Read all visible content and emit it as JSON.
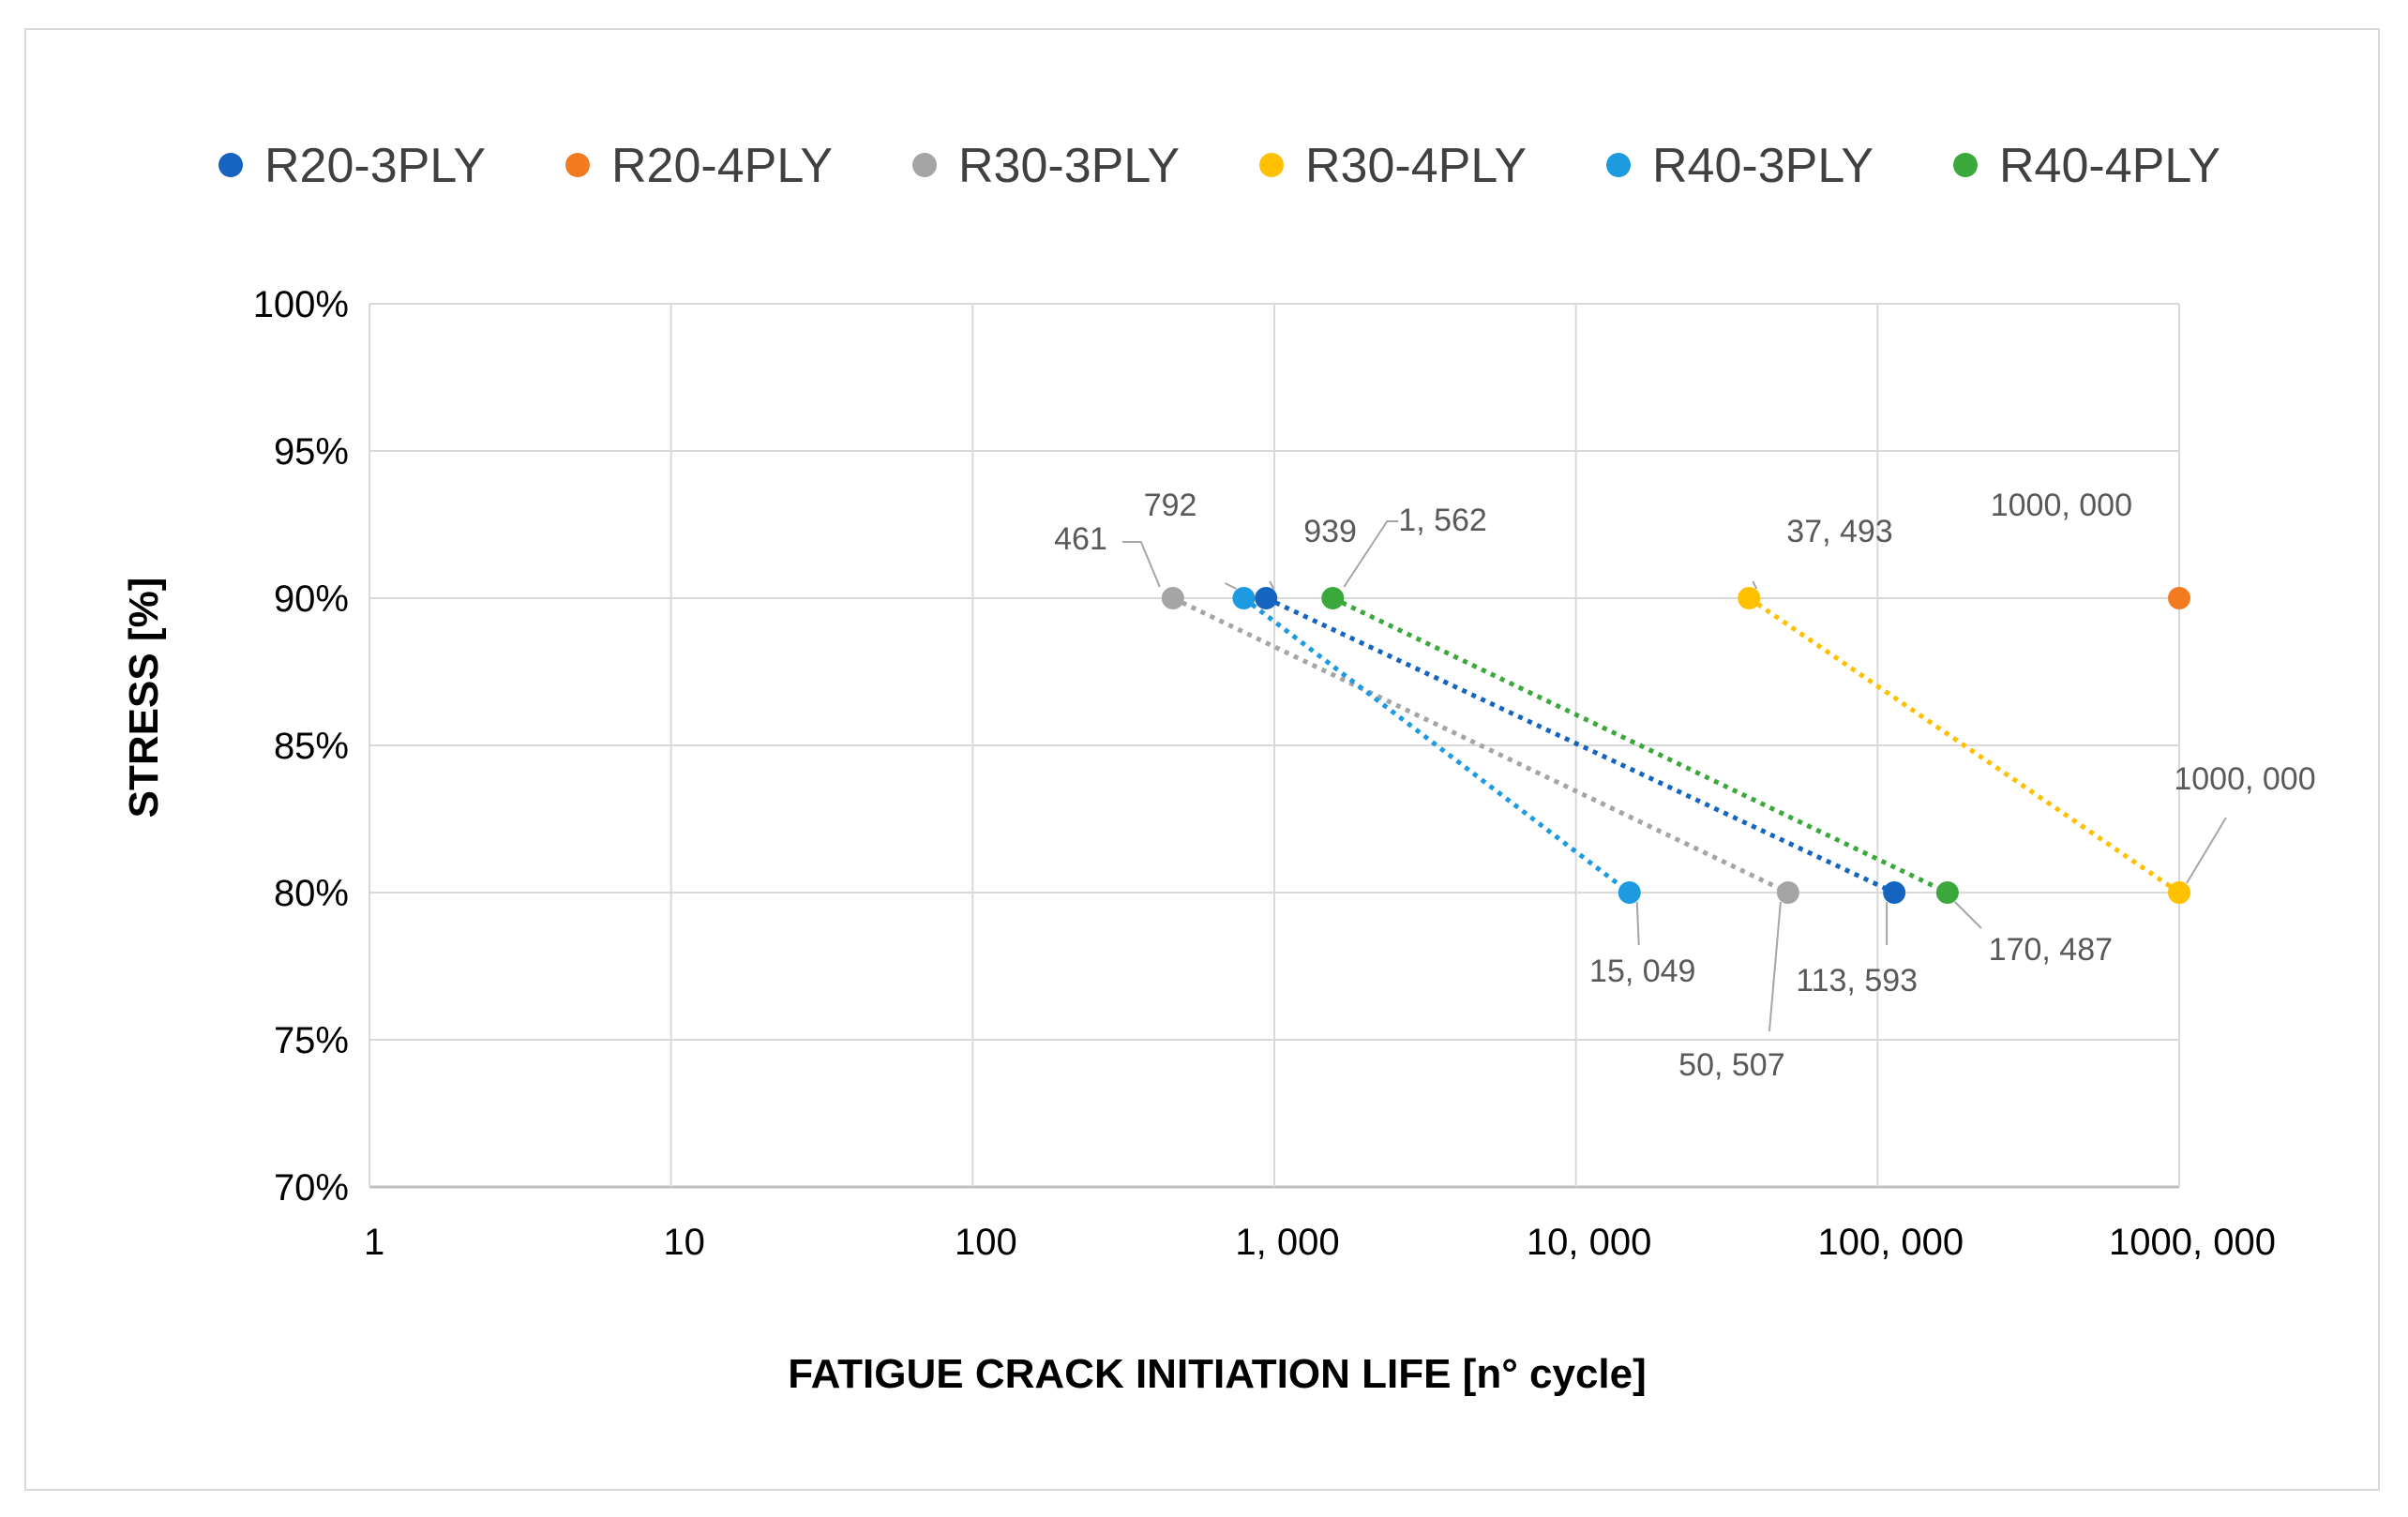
{
  "chart_data": {
    "type": "scatter",
    "title": "",
    "xlabel": "FATIGUE CRACK INITIATION LIFE [n° cycle]",
    "ylabel": "STRESS [%]",
    "xscale": "log",
    "xlim": [
      1,
      1000000
    ],
    "ylim": [
      70,
      100
    ],
    "grid": true,
    "legend_position": "top",
    "x_tick_values": [
      1,
      10,
      100,
      1000,
      10000,
      100000,
      1000000
    ],
    "x_tick_labels": [
      "1",
      "10",
      "100",
      "1, 000",
      "10, 000",
      "100, 000",
      "1000, 000"
    ],
    "y_tick_values": [
      100,
      95,
      90,
      85,
      80,
      75,
      70
    ],
    "y_tick_labels": [
      "100%",
      "95%",
      "90%",
      "85%",
      "80%",
      "75%",
      "70%"
    ],
    "series": [
      {
        "name": "R20-3PLY",
        "color": "#1565c0",
        "line": "dotted",
        "points": [
          {
            "x": 939,
            "y": 90,
            "label": "939",
            "label_pos": "above-right"
          },
          {
            "x": 113593,
            "y": 80,
            "label": "113, 593",
            "label_pos": "below-left"
          }
        ]
      },
      {
        "name": "R20-4PLY",
        "color": "#f47a20",
        "line": "none",
        "points": [
          {
            "x": 1000000,
            "y": 90,
            "label": "1000, 000",
            "label_pos": "above-left"
          }
        ]
      },
      {
        "name": "R30-3PLY",
        "color": "#a5a5a5",
        "line": "dotted",
        "points": [
          {
            "x": 461,
            "y": 90,
            "label": "461",
            "label_pos": "left"
          },
          {
            "x": 50507,
            "y": 80,
            "label": "50, 507",
            "label_pos": "below-far"
          }
        ]
      },
      {
        "name": "R30-4PLY",
        "color": "#ffc000",
        "line": "dotted",
        "points": [
          {
            "x": 37493,
            "y": 90,
            "label": "37, 493",
            "label_pos": "above-right"
          },
          {
            "x": 1000000,
            "y": 80,
            "label": "1000, 000",
            "label_pos": "above-right-far"
          }
        ]
      },
      {
        "name": "R40-3PLY",
        "color": "#1e9be0",
        "line": "dotted",
        "points": [
          {
            "x": 792,
            "y": 90,
            "label": "792",
            "label_pos": "above-left"
          },
          {
            "x": 15049,
            "y": 80,
            "label": "15, 049",
            "label_pos": "below"
          }
        ]
      },
      {
        "name": "R40-4PLY",
        "color": "#3aa83a",
        "line": "dotted",
        "points": [
          {
            "x": 1562,
            "y": 90,
            "label": "1, 562",
            "label_pos": "right"
          },
          {
            "x": 170487,
            "y": 80,
            "label": "170, 487",
            "label_pos": "below-right"
          }
        ]
      }
    ]
  }
}
